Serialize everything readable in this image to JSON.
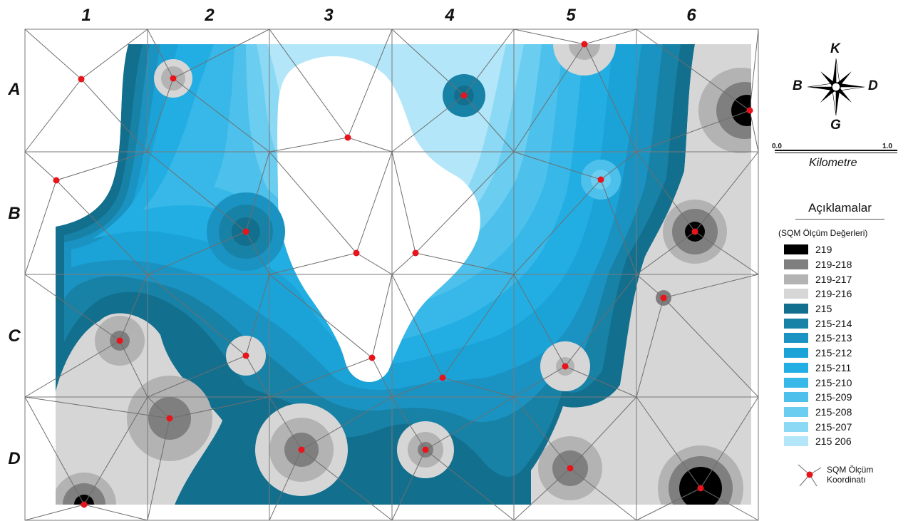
{
  "columns": [
    "1",
    "2",
    "3",
    "4",
    "5",
    "6"
  ],
  "rows": [
    "A",
    "B",
    "C",
    "D"
  ],
  "compass": {
    "north": "K",
    "south": "G",
    "west": "B",
    "east": "D"
  },
  "scale": {
    "start": "0.0",
    "end": "1.0",
    "unit": "Kilometre"
  },
  "legend": {
    "title": "Açıklamalar",
    "subtitle": "(SQM Ölçüm Değerleri)",
    "classes": [
      {
        "label": "219",
        "color": "#000000"
      },
      {
        "label": "219-218",
        "color": "#7f7f7f"
      },
      {
        "label": "219-217",
        "color": "#b3b3b3"
      },
      {
        "label": "219-216",
        "color": "#d6d6d6"
      },
      {
        "label": "215",
        "color": "#126f8e"
      },
      {
        "label": "215-214",
        "color": "#1881a6"
      },
      {
        "label": "215-213",
        "color": "#1a93c2"
      },
      {
        "label": "215-212",
        "color": "#1ba3d8"
      },
      {
        "label": "215-211",
        "color": "#22aee3"
      },
      {
        "label": "215-210",
        "color": "#37b8e8"
      },
      {
        "label": "215-209",
        "color": "#4dc1ec"
      },
      {
        "label": "215-208",
        "color": "#6bcdf0"
      },
      {
        "label": "215-207",
        "color": "#8bd9f4"
      },
      {
        "label": "215 206",
        "color": "#b3e6f8"
      }
    ],
    "point_label": "SQM Ölçüm Koordinatı"
  },
  "colors": {
    "point": "#e8141b",
    "grid": "#7a7a7a",
    "tin": "#6e6e6e"
  }
}
